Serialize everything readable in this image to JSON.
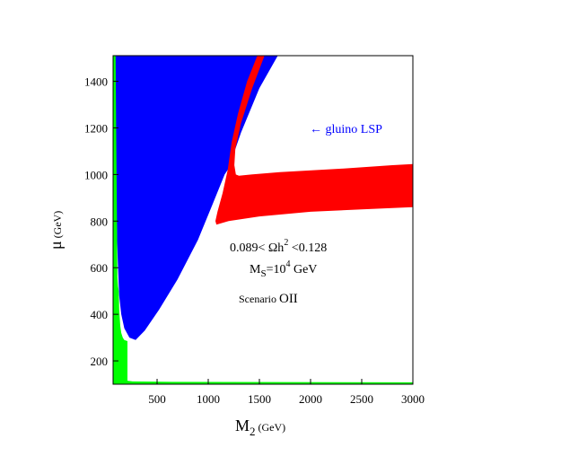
{
  "chart_data": {
    "type": "area",
    "xlabel": {
      "main": "M",
      "sub": "2",
      "unit": " (GeV)"
    },
    "ylabel": {
      "main": "μ",
      "unit": " (GeV)"
    },
    "xlim": [
      70,
      3000
    ],
    "ylim": [
      100,
      1510
    ],
    "xticks": [
      500,
      1000,
      1500,
      2000,
      2500,
      3000
    ],
    "yticks": [
      200,
      400,
      600,
      800,
      1000,
      1200,
      1400
    ],
    "grid": false,
    "colors": {
      "blue": "#0000ff",
      "red": "#ff0000",
      "green": "#00ff00",
      "frame": "#000000",
      "gluino_text": "#0000ff"
    },
    "regions": [
      {
        "name": "blue",
        "color": "#0000ff",
        "points": [
          [
            70,
            1510
          ],
          [
            1680,
            1510
          ],
          [
            1500,
            1370
          ],
          [
            1320,
            1180
          ],
          [
            1210,
            1040
          ],
          [
            1190,
            1020
          ],
          [
            1160,
            1000
          ],
          [
            1040,
            870
          ],
          [
            900,
            720
          ],
          [
            700,
            550
          ],
          [
            520,
            420
          ],
          [
            380,
            330
          ],
          [
            290,
            290
          ],
          [
            230,
            300
          ],
          [
            180,
            340
          ],
          [
            150,
            400
          ],
          [
            130,
            480
          ],
          [
            120,
            580
          ],
          [
            110,
            700
          ],
          [
            100,
            900
          ],
          [
            95,
            1200
          ],
          [
            90,
            1510
          ]
        ]
      },
      {
        "name": "red",
        "color": "#ff0000",
        "points": [
          [
            1480,
            1510
          ],
          [
            1550,
            1510
          ],
          [
            1430,
            1370
          ],
          [
            1320,
            1220
          ],
          [
            1265,
            1110
          ],
          [
            1255,
            1040
          ],
          [
            1270,
            1000
          ],
          [
            1300,
            995
          ],
          [
            1420,
            1000
          ],
          [
            1700,
            1010
          ],
          [
            2300,
            1025
          ],
          [
            2800,
            1040
          ],
          [
            3000,
            1045
          ],
          [
            3000,
            860
          ],
          [
            2500,
            850
          ],
          [
            2000,
            840
          ],
          [
            1500,
            820
          ],
          [
            1200,
            800
          ],
          [
            1080,
            785
          ],
          [
            1070,
            800
          ],
          [
            1090,
            840
          ],
          [
            1140,
            920
          ],
          [
            1190,
            1020
          ],
          [
            1230,
            1140
          ],
          [
            1290,
            1260
          ],
          [
            1380,
            1400
          ]
        ]
      },
      {
        "name": "green",
        "color": "#00ff00",
        "points": [
          [
            70,
            100
          ],
          [
            3000,
            100
          ],
          [
            3000,
            108
          ],
          [
            650,
            110
          ],
          [
            260,
            112
          ],
          [
            210,
            115
          ],
          [
            210,
            285
          ],
          [
            180,
            290
          ],
          [
            165,
            300
          ],
          [
            150,
            320
          ],
          [
            140,
            350
          ],
          [
            130,
            420
          ],
          [
            125,
            500
          ],
          [
            118,
            520
          ],
          [
            112,
            560
          ],
          [
            106,
            900
          ],
          [
            100,
            1200
          ],
          [
            95,
            1510
          ],
          [
            70,
            1510
          ]
        ]
      }
    ],
    "annotations": {
      "gluino": "← gluino LSP",
      "omega_pre": "0.089< Ωh",
      "omega_sup": "2",
      "omega_post": " <0.128",
      "ms_main": "M",
      "ms_sub": "S",
      "ms_eq": "=10",
      "ms_sup": "4",
      "ms_unit": " GeV",
      "scenario_pre": "Scenario ",
      "scenario_post": "OII"
    }
  }
}
